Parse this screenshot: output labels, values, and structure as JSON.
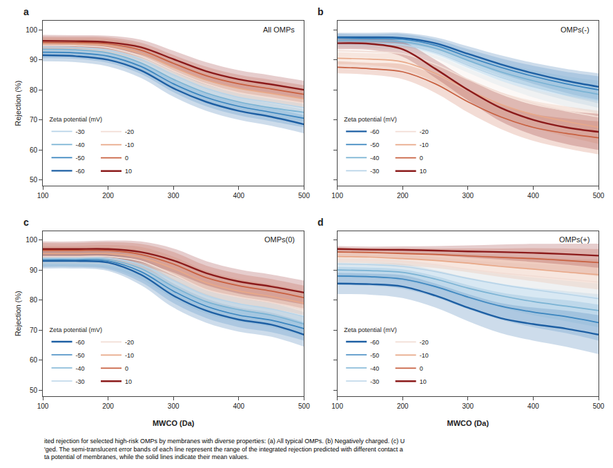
{
  "chart_data": [
    {
      "type": "line",
      "title": "All OMPs",
      "panel_label": "a",
      "ylabel": "Rejection (%)",
      "x": [
        100,
        150,
        200,
        250,
        300,
        350,
        400,
        450,
        500
      ],
      "xlim": [
        100,
        500
      ],
      "xticks": [
        100,
        200,
        300,
        400,
        500
      ],
      "ylim": [
        48,
        103
      ],
      "yticks": [
        50,
        60,
        70,
        80,
        90,
        100
      ],
      "grid": false,
      "legend": "lower left",
      "legend_title": "Zeta potential (mV)",
      "series": [
        {
          "name": "-60",
          "color": "#1d5fa3",
          "values": [
            91.5,
            91.2,
            90.0,
            86.5,
            80.5,
            76.0,
            73.0,
            71.0,
            68.5
          ],
          "band": [
            2.0,
            2.0,
            2.2,
            2.5,
            2.8,
            3.0,
            3.0,
            3.0,
            3.0
          ]
        },
        {
          "name": "-50",
          "color": "#3a85bf",
          "values": [
            92.5,
            92.3,
            91.2,
            87.8,
            82.0,
            77.5,
            74.5,
            72.5,
            70.5
          ],
          "band": [
            2.0,
            2.0,
            2.2,
            2.5,
            2.8,
            3.0,
            3.0,
            3.0,
            3.0
          ]
        },
        {
          "name": "-40",
          "color": "#7ab3d4",
          "values": [
            93.5,
            93.3,
            92.3,
            89.0,
            83.5,
            79.0,
            76.0,
            74.0,
            72.5
          ],
          "band": [
            2.0,
            2.0,
            2.2,
            2.5,
            2.8,
            3.0,
            3.0,
            3.0,
            3.0
          ]
        },
        {
          "name": "-30",
          "color": "#b8d4e8",
          "values": [
            94.3,
            94.1,
            93.2,
            90.2,
            85.0,
            80.5,
            77.5,
            75.8,
            74.0
          ],
          "band": [
            2.0,
            2.0,
            2.2,
            2.5,
            2.8,
            3.0,
            3.0,
            3.0,
            3.0
          ]
        },
        {
          "name": "-20",
          "color": "#f2ddd5",
          "values": [
            94.8,
            94.7,
            94.0,
            91.2,
            86.3,
            82.0,
            79.0,
            77.3,
            75.5
          ],
          "band": [
            2.0,
            2.0,
            2.2,
            2.5,
            2.8,
            3.0,
            3.0,
            3.0,
            3.0
          ]
        },
        {
          "name": "-10",
          "color": "#e8a888",
          "values": [
            95.3,
            95.2,
            94.7,
            92.2,
            87.5,
            83.3,
            80.5,
            78.8,
            77.0
          ],
          "band": [
            2.0,
            2.0,
            2.2,
            2.5,
            2.8,
            3.0,
            3.0,
            3.0,
            3.0
          ]
        },
        {
          "name": "0",
          "color": "#c86040",
          "values": [
            95.8,
            95.7,
            95.3,
            93.2,
            88.8,
            84.7,
            82.0,
            80.3,
            78.5
          ],
          "band": [
            2.0,
            2.0,
            2.2,
            2.5,
            2.8,
            3.0,
            3.0,
            3.0,
            3.0
          ]
        },
        {
          "name": "10",
          "color": "#8b1a1a",
          "values": [
            96.3,
            96.2,
            95.8,
            94.2,
            90.2,
            86.2,
            83.5,
            81.8,
            80.0
          ],
          "band": [
            2.0,
            2.0,
            2.2,
            2.5,
            2.8,
            3.0,
            3.0,
            3.0,
            3.0
          ]
        }
      ]
    },
    {
      "type": "line",
      "title": "OMPs(-)",
      "panel_label": "b",
      "tick_labels": "x",
      "x": [
        100,
        150,
        200,
        250,
        300,
        350,
        400,
        450,
        500
      ],
      "xlim": [
        100,
        500
      ],
      "xticks": [
        100,
        200,
        300,
        400,
        500
      ],
      "ylim": [
        48,
        103
      ],
      "yticks": [
        50,
        60,
        70,
        80,
        90,
        100
      ],
      "grid": false,
      "legend": "lower left",
      "legend_title": "Zeta potential (mV)",
      "series": [
        {
          "name": "-60",
          "color": "#1d5fa3",
          "values": [
            97.5,
            97.5,
            97.2,
            95.5,
            92.0,
            88.5,
            85.5,
            83.0,
            81.0
          ],
          "band": [
            1.5,
            1.5,
            1.8,
            2.0,
            2.5,
            3.0,
            3.5,
            4.0,
            4.5
          ]
        },
        {
          "name": "-50",
          "color": "#3a85bf",
          "values": [
            97.2,
            97.0,
            96.8,
            94.8,
            91.0,
            87.5,
            84.5,
            82.0,
            80.0
          ],
          "band": [
            1.5,
            1.5,
            1.8,
            2.0,
            2.5,
            3.0,
            3.5,
            4.0,
            4.5
          ]
        },
        {
          "name": "-40",
          "color": "#7ab3d4",
          "values": [
            96.5,
            96.3,
            96.0,
            93.8,
            89.8,
            86.0,
            83.0,
            80.5,
            78.5
          ],
          "band": [
            1.5,
            1.5,
            1.8,
            2.0,
            2.5,
            3.0,
            3.5,
            4.0,
            4.5
          ]
        },
        {
          "name": "-30",
          "color": "#b8d4e8",
          "values": [
            95.5,
            95.3,
            95.0,
            92.5,
            88.2,
            84.2,
            81.0,
            78.5,
            76.5
          ],
          "band": [
            1.5,
            1.5,
            1.8,
            2.0,
            2.5,
            3.0,
            3.5,
            4.0,
            4.5
          ]
        },
        {
          "name": "-20",
          "color": "#f2ddd5",
          "values": [
            93.0,
            92.7,
            92.0,
            88.5,
            83.5,
            79.0,
            75.5,
            73.0,
            71.0
          ],
          "band": [
            2.0,
            2.0,
            2.5,
            3.0,
            3.5,
            4.0,
            4.5,
            5.0,
            5.5
          ]
        },
        {
          "name": "-10",
          "color": "#e8a888",
          "values": [
            90.5,
            90.2,
            89.3,
            85.5,
            80.0,
            75.2,
            71.8,
            69.5,
            67.5
          ],
          "band": [
            2.0,
            2.0,
            2.5,
            3.0,
            3.5,
            4.0,
            4.5,
            5.0,
            5.5
          ]
        },
        {
          "name": "0",
          "color": "#c86040",
          "values": [
            87.5,
            87.0,
            86.0,
            82.0,
            76.0,
            71.0,
            67.5,
            65.5,
            64.0
          ],
          "band": [
            2.0,
            2.0,
            2.5,
            3.0,
            3.5,
            4.0,
            4.5,
            5.0,
            5.5
          ]
        },
        {
          "name": "10",
          "color": "#8b1a1a",
          "values": [
            95.5,
            95.3,
            93.5,
            87.0,
            80.0,
            74.0,
            70.0,
            67.5,
            66.0
          ],
          "band": [
            2.0,
            2.0,
            2.5,
            3.0,
            3.5,
            4.5,
            5.0,
            5.5,
            6.0
          ]
        }
      ]
    },
    {
      "type": "line",
      "title": "OMPs(0)",
      "panel_label": "c",
      "xlabel": "MWCO (Da)",
      "ylabel": "Rejection (%)",
      "x": [
        100,
        150,
        200,
        250,
        300,
        350,
        400,
        450,
        500
      ],
      "xlim": [
        100,
        500
      ],
      "xticks": [
        100,
        200,
        300,
        400,
        500
      ],
      "ylim": [
        48,
        103
      ],
      "yticks": [
        50,
        60,
        70,
        80,
        90,
        100
      ],
      "grid": false,
      "legend": "lower left",
      "legend_title": "Zeta potential (mV)",
      "series": [
        {
          "name": "-60",
          "color": "#1d5fa3",
          "values": [
            93.0,
            93.0,
            92.5,
            88.5,
            81.5,
            76.5,
            73.5,
            71.8,
            68.5
          ],
          "band": [
            2.5,
            2.5,
            2.8,
            3.5,
            4.0,
            4.0,
            4.0,
            4.0,
            4.0
          ]
        },
        {
          "name": "-50",
          "color": "#3a85bf",
          "values": [
            93.5,
            93.5,
            93.0,
            89.5,
            83.0,
            78.0,
            75.0,
            73.3,
            70.5
          ],
          "band": [
            2.5,
            2.5,
            2.8,
            3.5,
            4.0,
            4.0,
            4.0,
            4.0,
            4.0
          ]
        },
        {
          "name": "-40",
          "color": "#7ab3d4",
          "values": [
            93.8,
            93.8,
            93.5,
            90.5,
            84.5,
            79.5,
            76.8,
            75.0,
            72.0
          ],
          "band": [
            2.5,
            2.5,
            2.8,
            3.5,
            4.0,
            4.0,
            4.0,
            4.0,
            4.0
          ]
        },
        {
          "name": "-30",
          "color": "#b8d4e8",
          "values": [
            94.0,
            94.0,
            94.0,
            91.8,
            86.5,
            81.5,
            78.8,
            77.0,
            74.5
          ],
          "band": [
            2.5,
            2.5,
            2.8,
            3.5,
            4.0,
            4.0,
            4.0,
            4.0,
            4.0
          ]
        },
        {
          "name": "-20",
          "color": "#f2ddd5",
          "values": [
            94.5,
            94.5,
            94.5,
            93.0,
            88.5,
            83.5,
            81.0,
            79.2,
            77.0
          ],
          "band": [
            2.5,
            2.5,
            2.8,
            3.5,
            4.0,
            4.0,
            4.0,
            4.0,
            4.0
          ]
        },
        {
          "name": "-10",
          "color": "#e8a888",
          "values": [
            95.5,
            95.5,
            95.5,
            94.2,
            90.5,
            85.8,
            83.0,
            81.2,
            79.0
          ],
          "band": [
            2.5,
            2.5,
            2.8,
            3.5,
            4.0,
            4.0,
            4.0,
            4.0,
            4.0
          ]
        },
        {
          "name": "0",
          "color": "#c86040",
          "values": [
            96.5,
            96.5,
            96.5,
            95.2,
            92.0,
            87.5,
            84.8,
            83.0,
            80.8
          ],
          "band": [
            2.5,
            2.5,
            2.8,
            3.5,
            4.0,
            4.0,
            4.0,
            4.0,
            4.0
          ]
        },
        {
          "name": "10",
          "color": "#8b1a1a",
          "values": [
            97.0,
            97.0,
            97.0,
            96.0,
            93.2,
            89.0,
            86.2,
            84.5,
            82.5
          ],
          "band": [
            2.5,
            2.5,
            2.8,
            3.5,
            4.0,
            4.0,
            4.0,
            4.0,
            4.0
          ]
        }
      ]
    },
    {
      "type": "line",
      "title": "OMPs(+)",
      "panel_label": "d",
      "xlabel": "MWCO (Da)",
      "tick_labels": "x",
      "x": [
        100,
        150,
        200,
        250,
        300,
        350,
        400,
        450,
        500
      ],
      "xlim": [
        100,
        500
      ],
      "xticks": [
        100,
        200,
        300,
        400,
        500
      ],
      "ylim": [
        48,
        103
      ],
      "yticks": [
        50,
        60,
        70,
        80,
        90,
        100
      ],
      "grid": false,
      "legend": "lower left",
      "legend_title": "Zeta potential (mV)",
      "series": [
        {
          "name": "-60",
          "color": "#1d5fa3",
          "values": [
            85.5,
            85.3,
            84.5,
            81.5,
            77.5,
            74.0,
            72.0,
            70.5,
            68.5
          ],
          "band": [
            3.5,
            3.5,
            3.8,
            4.0,
            4.5,
            5.0,
            5.5,
            6.0,
            6.5
          ]
        },
        {
          "name": "-50",
          "color": "#3a85bf",
          "values": [
            88.0,
            87.8,
            87.0,
            84.5,
            81.0,
            78.0,
            76.0,
            74.5,
            72.5
          ],
          "band": [
            3.0,
            3.0,
            3.2,
            3.5,
            4.0,
            4.5,
            5.0,
            5.5,
            6.0
          ]
        },
        {
          "name": "-40",
          "color": "#7ab3d4",
          "values": [
            90.0,
            89.8,
            89.2,
            87.0,
            84.0,
            81.5,
            79.5,
            78.0,
            76.5
          ],
          "band": [
            2.5,
            2.5,
            2.8,
            3.0,
            3.5,
            4.0,
            4.5,
            5.0,
            5.5
          ]
        },
        {
          "name": "-30",
          "color": "#b8d4e8",
          "values": [
            92.0,
            91.8,
            91.2,
            89.5,
            87.2,
            85.2,
            83.5,
            82.0,
            80.5
          ],
          "band": [
            2.0,
            2.0,
            2.2,
            2.5,
            3.0,
            3.5,
            4.0,
            4.5,
            5.0
          ]
        },
        {
          "name": "-20",
          "color": "#f2ddd5",
          "values": [
            93.5,
            93.3,
            92.8,
            91.8,
            90.3,
            89.0,
            88.0,
            87.0,
            86.0
          ],
          "band": [
            2.0,
            2.0,
            2.2,
            2.5,
            3.0,
            3.5,
            4.0,
            4.5,
            5.0
          ]
        },
        {
          "name": "-10",
          "color": "#e8a888",
          "values": [
            94.5,
            94.3,
            93.8,
            93.2,
            92.3,
            91.2,
            90.3,
            89.3,
            88.5
          ],
          "band": [
            2.0,
            2.0,
            2.2,
            2.5,
            3.0,
            3.5,
            4.0,
            4.5,
            5.0
          ]
        },
        {
          "name": "0",
          "color": "#c86040",
          "values": [
            96.0,
            95.8,
            95.5,
            95.2,
            94.7,
            94.2,
            93.8,
            93.2,
            92.5
          ],
          "band": [
            1.5,
            1.5,
            1.8,
            2.0,
            2.5,
            3.0,
            3.5,
            4.0,
            4.5
          ]
        },
        {
          "name": "10",
          "color": "#8b1a1a",
          "values": [
            97.0,
            96.8,
            96.7,
            96.5,
            96.2,
            96.0,
            95.7,
            95.3,
            94.8
          ],
          "band": [
            1.0,
            1.0,
            1.2,
            1.5,
            2.0,
            2.5,
            3.0,
            3.5,
            4.0
          ]
        }
      ]
    }
  ],
  "caption": [
    "ited rejection for selected high-risk OMPs by membranes with diverse properties: (a) All typical OMPs. (b) Negatively charged. (c) U",
    "'ged. The semi-translucent error bands of each line represent the range of the integrated rejection predicted with different contact a",
    "ta potential of membranes, while the solid lines indicate their mean values."
  ]
}
